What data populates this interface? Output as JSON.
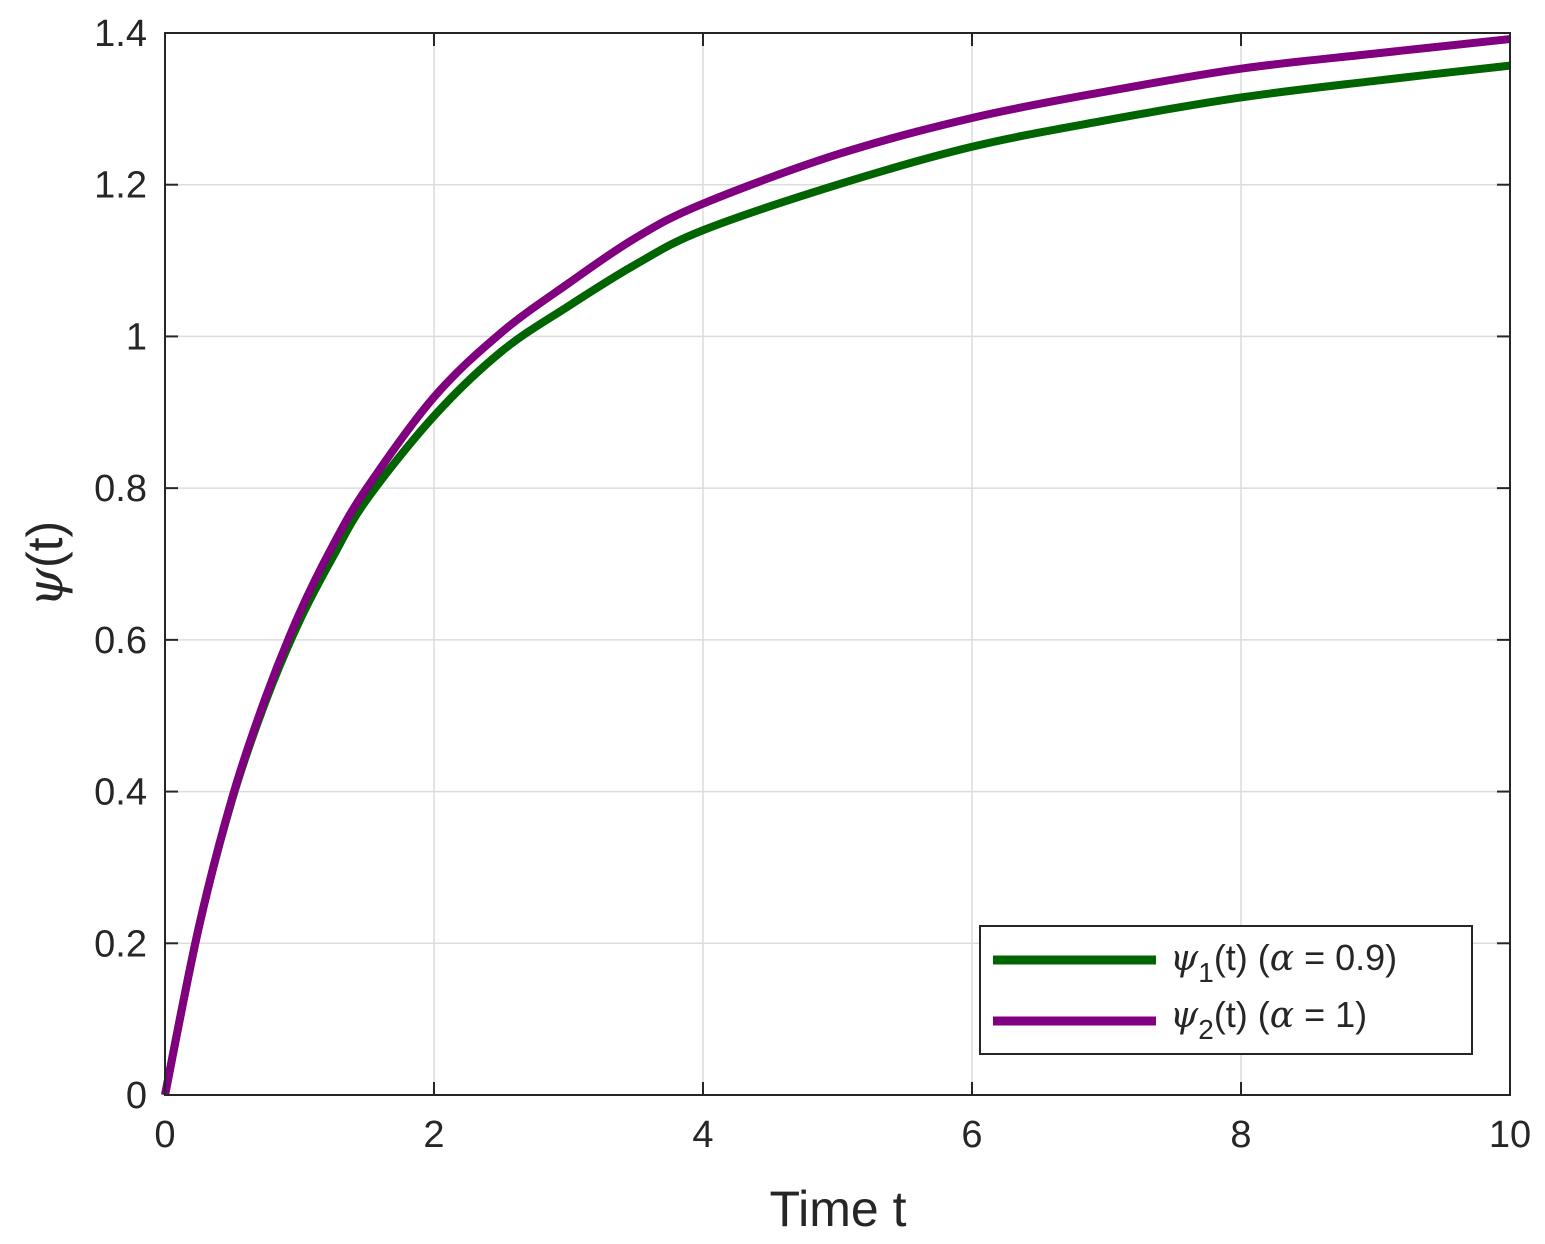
{
  "chart_data": {
    "type": "line",
    "xlabel": "Time t",
    "ylabel": "ψ(t)",
    "xlim": [
      0,
      10
    ],
    "ylim": [
      0,
      1.4
    ],
    "xticks": [
      0,
      2,
      4,
      6,
      8,
      10
    ],
    "yticks": [
      0,
      0.2,
      0.4,
      0.6,
      0.8,
      1,
      1.2,
      1.4
    ],
    "xtick_labels": [
      "0",
      "2",
      "4",
      "6",
      "8",
      "10"
    ],
    "ytick_labels": [
      "0",
      "0.2",
      "0.4",
      "0.6",
      "0.8",
      "1",
      "1.2",
      "1.4"
    ],
    "grid": true,
    "legend_position": "bottom-right",
    "series": [
      {
        "name": "ψ1(t) (α = 0.9)",
        "legend": {
          "symbol": "ψ",
          "subscript": "1",
          "args": "(t) (",
          "param_symbol": "α",
          "param_text": " = 0.9)"
        },
        "color": "#006400",
        "x": [
          0,
          0.25,
          0.5,
          0.75,
          1,
          1.25,
          1.5,
          2,
          2.5,
          3,
          3.5,
          4,
          5,
          6,
          7,
          8,
          9,
          10
        ],
        "y": [
          0,
          0.22,
          0.39,
          0.52,
          0.625,
          0.71,
          0.785,
          0.895,
          0.98,
          1.04,
          1.095,
          1.14,
          1.2,
          1.25,
          1.285,
          1.315,
          1.337,
          1.357
        ]
      },
      {
        "name": "ψ2(t) (α = 1)",
        "legend": {
          "symbol": "ψ",
          "subscript": "2",
          "args": "(t) (",
          "param_symbol": "α",
          "param_text": " = 1)"
        },
        "color": "#800080",
        "x": [
          0,
          0.25,
          0.5,
          0.75,
          1,
          1.25,
          1.5,
          2,
          2.5,
          3,
          3.5,
          4,
          5,
          6,
          7,
          8,
          9,
          10
        ],
        "y": [
          0,
          0.22,
          0.392,
          0.525,
          0.635,
          0.725,
          0.8,
          0.92,
          1.005,
          1.07,
          1.13,
          1.175,
          1.24,
          1.288,
          1.323,
          1.353,
          1.373,
          1.392
        ]
      }
    ]
  }
}
